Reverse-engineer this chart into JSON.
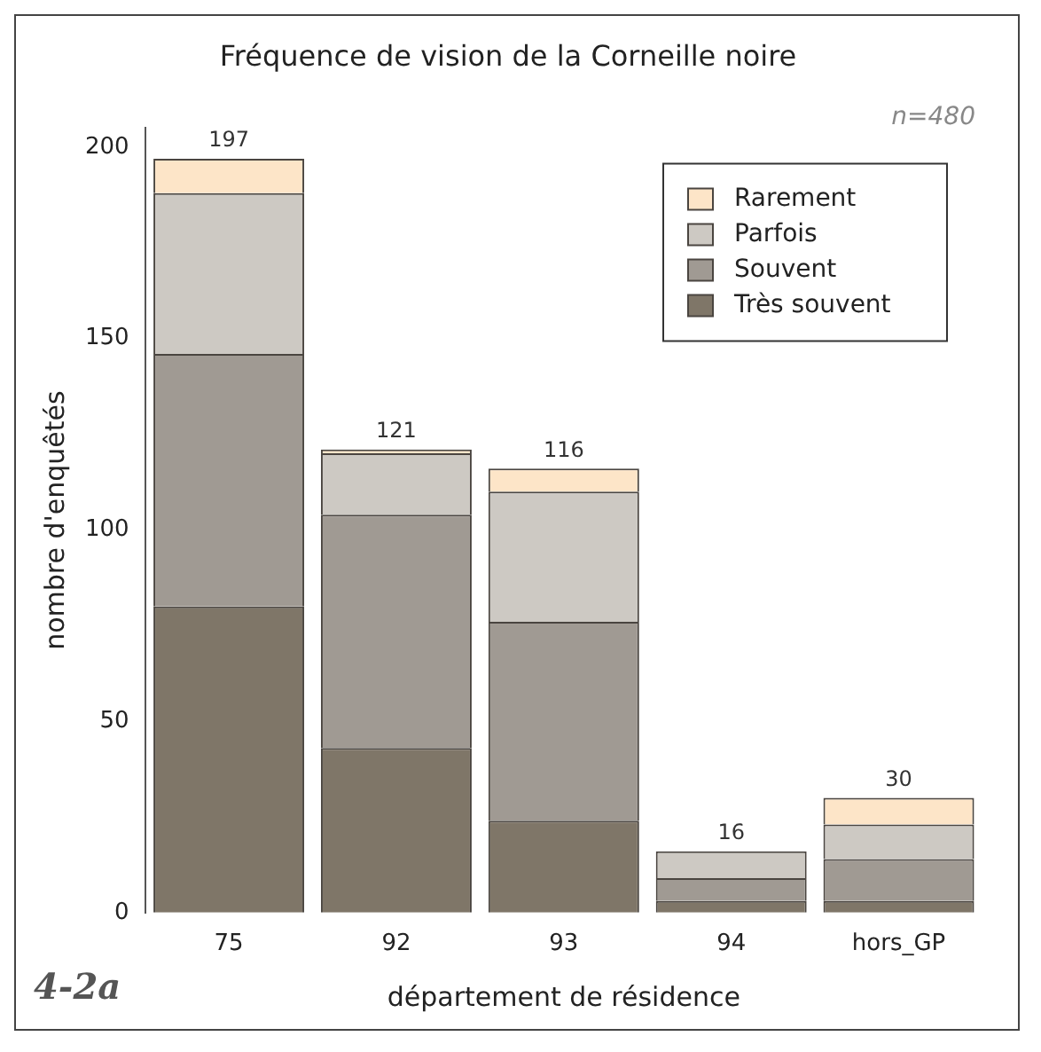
{
  "chart_data": {
    "type": "bar",
    "title": "Fréquence de vision de la Corneille noire",
    "xlabel": "département de résidence",
    "ylabel": "nombre d'enquêtés",
    "categories": [
      "75",
      "92",
      "93",
      "94",
      "hors_GP"
    ],
    "stacked": true,
    "series": [
      {
        "name": "Très souvent",
        "color": "#7f7668",
        "values": [
          80,
          43,
          24,
          3,
          3
        ]
      },
      {
        "name": "Souvent",
        "color": "#a09a93",
        "values": [
          66,
          61,
          52,
          6,
          11
        ]
      },
      {
        "name": "Parfois",
        "color": "#cdc9c3",
        "values": [
          42,
          16,
          34,
          7,
          9
        ]
      },
      {
        "name": "Rarement",
        "color": "#fde5c8",
        "values": [
          9,
          1,
          6,
          0,
          7
        ]
      }
    ],
    "totals": [
      "197",
      "121",
      "116",
      "16",
      "30"
    ],
    "ylim": [
      0,
      205
    ],
    "yticks": [
      0,
      50,
      100,
      150,
      200
    ],
    "grid": false,
    "legend": "top right",
    "annotations": [
      "n=480",
      "4-2a"
    ]
  }
}
